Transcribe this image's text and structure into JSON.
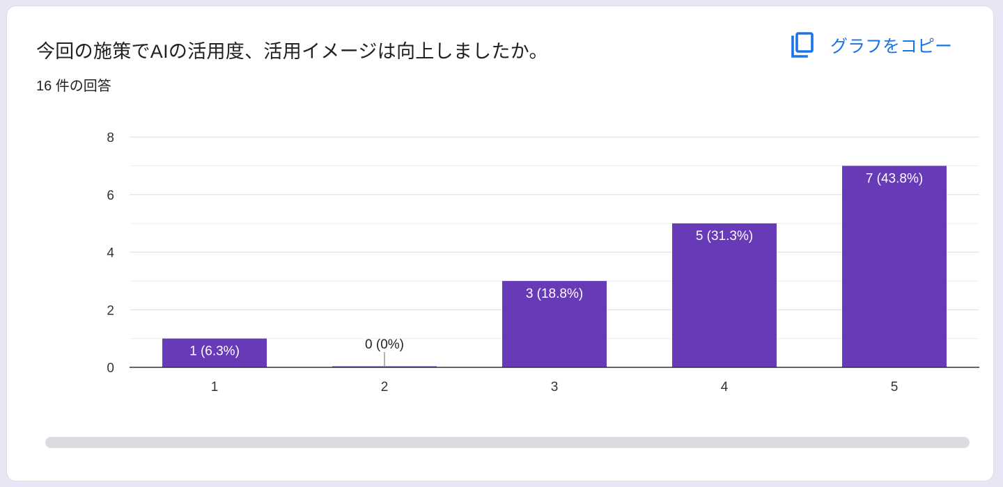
{
  "header": {
    "title": "今回の施策でAIの活用度、活用イメージは向上しましたか。",
    "responses": "16 件の回答",
    "copy_label": "グラフをコピー",
    "copy_icon": "copy-icon"
  },
  "colors": {
    "bar": "#673ab7",
    "accent": "#1a73e8",
    "grid": "#e8e8e8",
    "axis": "#333333"
  },
  "chart_data": {
    "type": "bar",
    "categories": [
      "1",
      "2",
      "3",
      "4",
      "5"
    ],
    "values": [
      1,
      0,
      3,
      5,
      7
    ],
    "labels": [
      "1 (6.3%)",
      "0 (0%)",
      "3 (18.8%)",
      "5 (31.3%)",
      "7 (43.8%)"
    ],
    "title": "今回の施策でAIの活用度、活用イメージは向上しましたか。",
    "xlabel": "",
    "ylabel": "",
    "ylim": [
      0,
      8
    ],
    "yticks": [
      "0",
      "2",
      "4",
      "6",
      "8"
    ],
    "grid": true,
    "legend": "none"
  }
}
